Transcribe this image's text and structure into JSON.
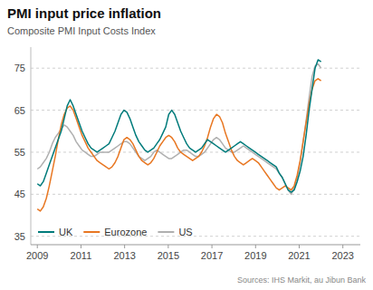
{
  "chart_data": {
    "type": "line",
    "title": "PMI input price inflation",
    "subtitle": "Composite PMI Input Costs  Index",
    "source": "Sources: IHS Markit, au Jibun Bank",
    "x": [
      2009,
      2009.136842,
      2009.273684,
      2009.410526,
      2009.547368,
      2009.684211,
      2009.821053,
      2009.957895,
      2010.094737,
      2010.231579,
      2010.368421,
      2010.505263,
      2010.642105,
      2010.778947,
      2010.915789,
      2011.052632,
      2011.189474,
      2011.326316,
      2011.463158,
      2011.6,
      2011.736842,
      2011.873684,
      2012.010526,
      2012.147368,
      2012.284211,
      2012.421053,
      2012.557895,
      2012.694737,
      2012.831579,
      2012.968421,
      2013.105263,
      2013.242105,
      2013.378947,
      2013.515789,
      2013.652632,
      2013.789474,
      2013.926316,
      2014.063158,
      2014.2,
      2014.336842,
      2014.473684,
      2014.610526,
      2014.747368,
      2014.884211,
      2015.021053,
      2015.157895,
      2015.294737,
      2015.431579,
      2015.568421,
      2015.705263,
      2015.842105,
      2015.978947,
      2016.115789,
      2016.252632,
      2016.389474,
      2016.526316,
      2016.663158,
      2016.8,
      2016.936842,
      2017.073684,
      2017.210526,
      2017.347368,
      2017.484211,
      2017.621053,
      2017.757895,
      2017.894737,
      2018.031579,
      2018.168421,
      2018.305263,
      2018.442105,
      2018.578947,
      2018.715789,
      2018.852632,
      2018.989474,
      2019.126316,
      2019.263158,
      2019.4,
      2019.536842,
      2019.673684,
      2019.810526,
      2019.947368,
      2020.084211,
      2020.221053,
      2020.357895,
      2020.494737,
      2020.631579,
      2020.768421,
      2020.905263,
      2021.042105,
      2021.178947,
      2021.315789,
      2021.452632,
      2021.589474,
      2021.726316,
      2021.863158,
      2022
    ],
    "series": [
      {
        "name": "UK",
        "color": "#007B7B",
        "values": [
          47.5,
          47.0,
          48.0,
          50.0,
          52.0,
          54.0,
          56.0,
          58.0,
          60.0,
          63.0,
          66.0,
          67.5,
          66.0,
          64.0,
          62.0,
          60.0,
          58.5,
          57.0,
          56.0,
          55.5,
          55.0,
          55.5,
          56.0,
          56.5,
          57.0,
          58.5,
          60.0,
          62.0,
          64.0,
          65.0,
          64.5,
          63.0,
          61.0,
          59.0,
          57.5,
          56.5,
          55.5,
          55.0,
          55.5,
          56.0,
          57.0,
          58.0,
          59.5,
          61.0,
          64.0,
          65.0,
          64.0,
          62.0,
          60.0,
          58.5,
          57.0,
          56.0,
          55.5,
          55.0,
          55.5,
          56.0,
          57.0,
          58.0,
          57.5,
          57.0,
          56.5,
          56.0,
          55.5,
          55.0,
          55.5,
          56.0,
          56.5,
          57.0,
          57.5,
          57.0,
          56.5,
          56.0,
          55.5,
          55.0,
          54.5,
          54.0,
          53.5,
          53.0,
          52.5,
          52.0,
          51.5,
          50.0,
          49.0,
          47.5,
          46.0,
          45.5,
          46.0,
          48.0,
          50.5,
          54.0,
          59.0,
          65.0,
          70.0,
          75.0,
          77.0,
          76.5
        ]
      },
      {
        "name": "Eurozone",
        "color": "#E87722",
        "values": [
          41.5,
          41.0,
          42.0,
          44.0,
          47.0,
          50.5,
          54.0,
          58.0,
          61.5,
          64.0,
          65.5,
          66.0,
          65.0,
          63.0,
          61.0,
          59.0,
          57.5,
          56.0,
          55.0,
          54.0,
          53.0,
          52.5,
          52.0,
          51.5,
          51.0,
          51.5,
          52.5,
          54.0,
          56.0,
          58.0,
          58.5,
          58.0,
          57.0,
          55.5,
          54.0,
          53.0,
          52.5,
          52.0,
          52.5,
          53.5,
          55.0,
          56.5,
          57.5,
          58.5,
          59.0,
          58.5,
          57.5,
          56.0,
          55.0,
          54.5,
          54.0,
          53.5,
          53.0,
          53.5,
          54.0,
          55.0,
          56.5,
          58.5,
          61.0,
          63.0,
          64.0,
          63.5,
          62.0,
          59.5,
          57.5,
          55.5,
          54.0,
          53.0,
          52.5,
          52.0,
          52.5,
          53.0,
          53.5,
          53.0,
          52.5,
          51.5,
          50.5,
          49.5,
          48.5,
          47.5,
          46.5,
          46.0,
          46.5,
          47.0,
          46.5,
          46.0,
          47.0,
          49.5,
          53.0,
          57.5,
          62.0,
          66.5,
          70.0,
          72.0,
          72.5,
          72.0
        ]
      },
      {
        "name": "US",
        "color": "#B0B0B0",
        "values": [
          51.0,
          51.5,
          52.5,
          53.5,
          55.0,
          57.0,
          58.5,
          59.5,
          60.5,
          61.5,
          61.0,
          60.0,
          59.0,
          57.5,
          56.5,
          55.5,
          55.0,
          54.5,
          54.0,
          54.0,
          54.5,
          55.0,
          55.0,
          55.0,
          55.0,
          55.5,
          56.0,
          56.5,
          57.0,
          57.5,
          57.5,
          57.0,
          56.0,
          55.0,
          54.0,
          53.5,
          53.0,
          53.5,
          54.0,
          55.0,
          55.5,
          55.0,
          54.5,
          54.0,
          53.5,
          53.5,
          54.0,
          54.5,
          55.0,
          55.5,
          55.5,
          55.0,
          54.5,
          54.0,
          54.0,
          54.5,
          55.0,
          56.0,
          57.0,
          58.0,
          58.5,
          58.0,
          57.0,
          56.0,
          55.5,
          55.0,
          55.0,
          55.5,
          56.0,
          56.5,
          56.0,
          55.5,
          55.0,
          54.5,
          54.0,
          53.5,
          53.0,
          52.5,
          52.0,
          51.5,
          51.0,
          50.0,
          49.0,
          47.5,
          46.0,
          45.0,
          46.5,
          49.0,
          52.5,
          57.5,
          62.5,
          68.0,
          73.0,
          75.5,
          76.0,
          75.0
        ]
      }
    ],
    "xlim": [
      2008.7,
      2023.8
    ],
    "xticks": [
      2009,
      2011,
      2013,
      2015,
      2017,
      2019,
      2021,
      2023
    ],
    "ylim": [
      33,
      80
    ],
    "yticks": [
      35,
      45,
      55,
      65,
      75
    ],
    "grid": true,
    "legend": "lower left"
  }
}
